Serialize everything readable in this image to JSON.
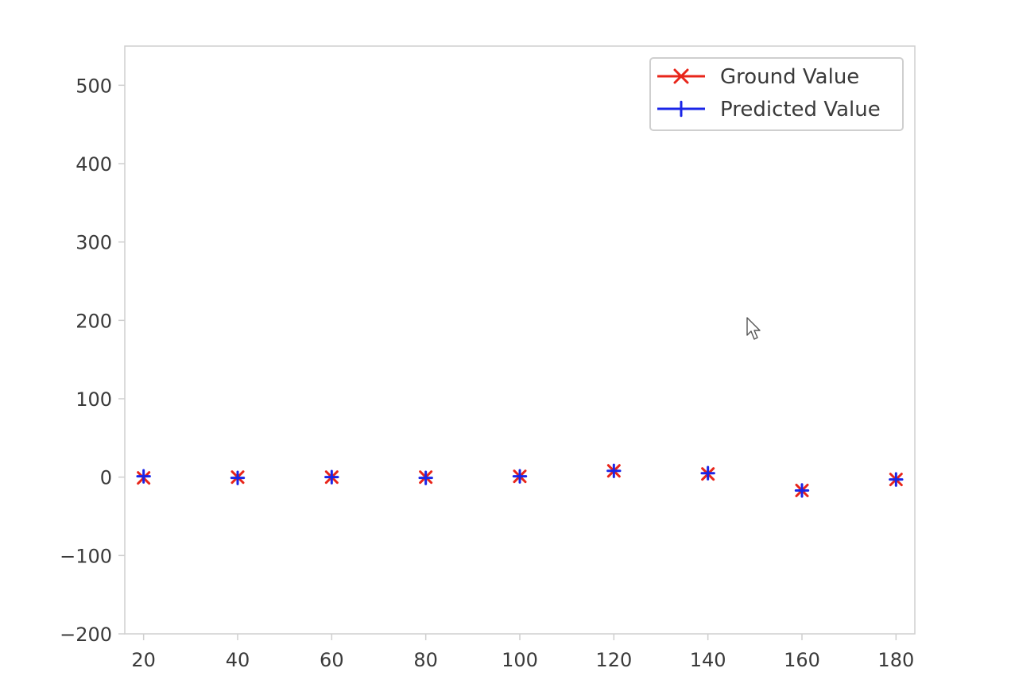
{
  "colors": {
    "ground": "#e8251a",
    "predicted": "#1a25e8",
    "axes": "#cfcfcf",
    "text": "#3a3a3a"
  },
  "legend": {
    "placement": "top-right",
    "items": [
      {
        "label": "Ground Value",
        "marker": "x",
        "color": "#e8251a"
      },
      {
        "label": "Predicted Value",
        "marker": "plus",
        "color": "#1a25e8"
      }
    ]
  },
  "cursor": {
    "icon": "mouse-pointer-icon"
  },
  "chart_data": {
    "type": "scatter",
    "title": "",
    "xlabel": "",
    "ylabel": "",
    "xlim": [
      16,
      184
    ],
    "ylim": [
      -200,
      550
    ],
    "xticks": [
      20,
      40,
      60,
      80,
      100,
      120,
      140,
      160,
      180
    ],
    "xtick_labels": [
      "20",
      "40",
      "60",
      "80",
      "100",
      "120",
      "140",
      "160",
      "180"
    ],
    "yticks": [
      -200,
      -100,
      0,
      100,
      200,
      300,
      400,
      500
    ],
    "ytick_labels": [
      "−200",
      "−100",
      "0",
      "100",
      "200",
      "300",
      "400",
      "500"
    ],
    "grid": false,
    "x": [
      20,
      40,
      60,
      80,
      100,
      120,
      140,
      160,
      180
    ],
    "series": [
      {
        "name": "Ground Value",
        "marker": "x",
        "color": "#e8251a",
        "values": [
          -1,
          0,
          0,
          0,
          1,
          8,
          4,
          -17,
          -3
        ]
      },
      {
        "name": "Predicted Value",
        "marker": "plus",
        "color": "#1a25e8",
        "values": [
          1,
          -1,
          0,
          -1,
          1,
          8,
          5,
          -17,
          -3
        ]
      }
    ]
  }
}
